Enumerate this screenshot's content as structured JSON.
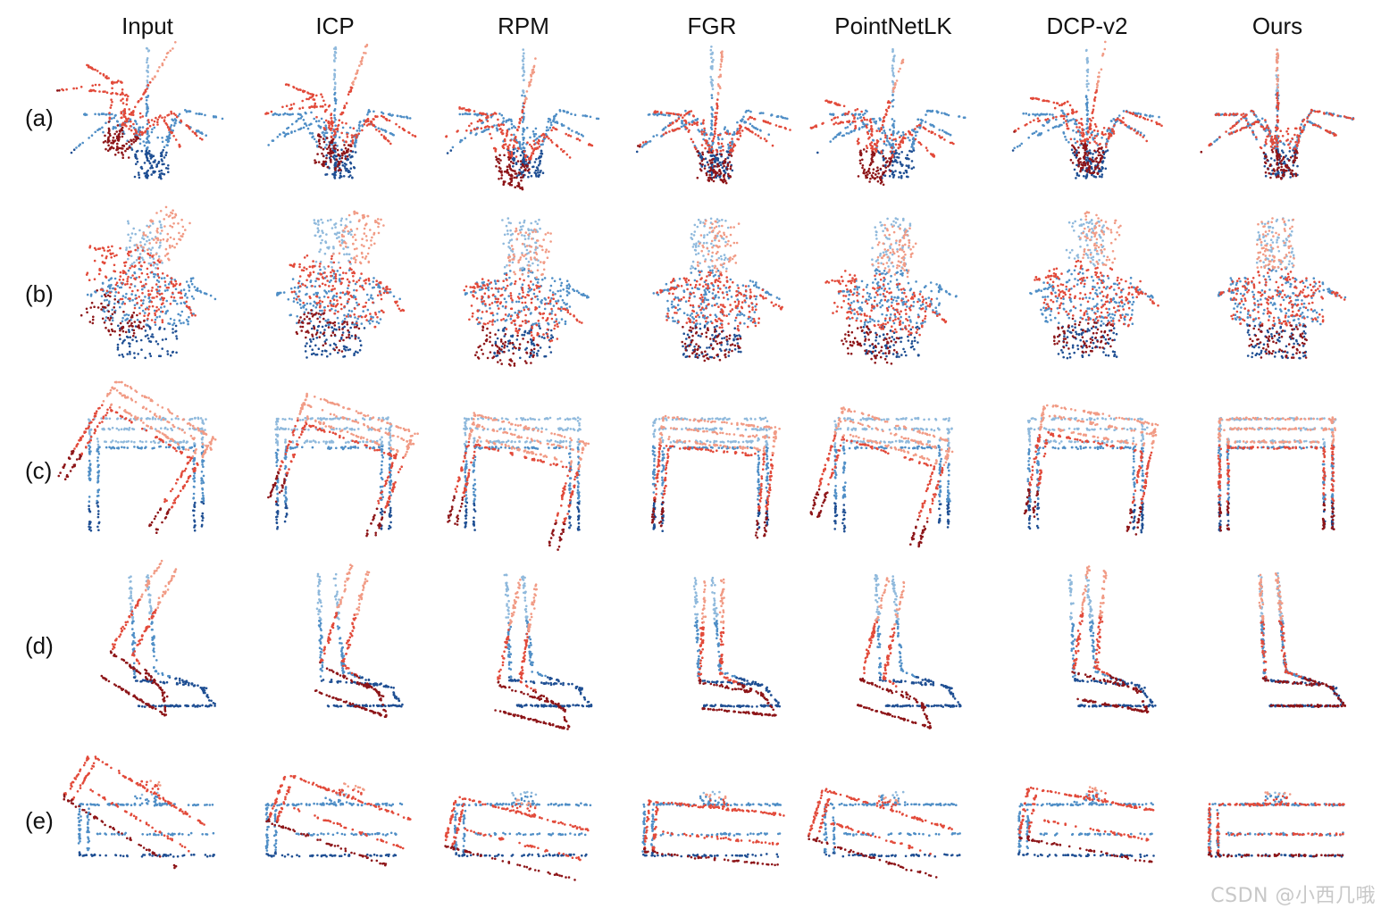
{
  "figure": {
    "columns": [
      "Input",
      "ICP",
      "RPM",
      "FGR",
      "PointNetLK",
      "DCP-v2",
      "Ours"
    ],
    "rows": [
      {
        "label": "(a)",
        "object": "plant"
      },
      {
        "label": "(b)",
        "object": "flower-pot"
      },
      {
        "label": "(c)",
        "object": "table"
      },
      {
        "label": "(d)",
        "object": "chair"
      },
      {
        "label": "(e)",
        "object": "sofa"
      }
    ],
    "colors": {
      "source_light": "#8fb9dc",
      "source_mid": "#4f8ec6",
      "source_dark": "#1f4f93",
      "target_light": "#f19b85",
      "target_mid": "#e24a3a",
      "target_dark": "#8d1518"
    }
  },
  "watermark": {
    "text": "CSDN @小西几哦"
  }
}
